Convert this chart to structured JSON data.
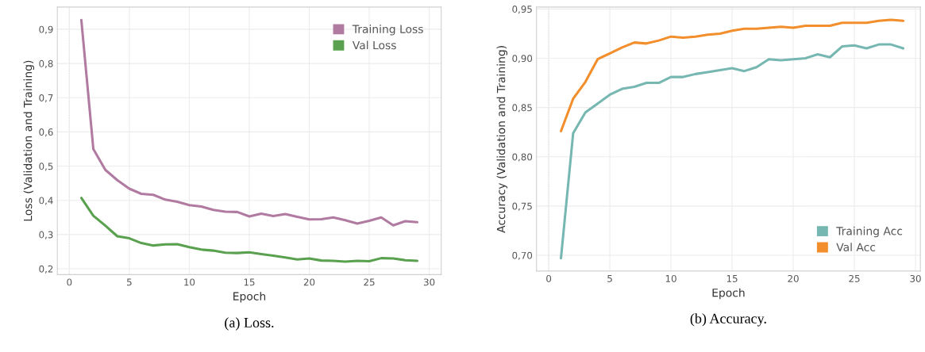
{
  "chart_data": [
    {
      "type": "line",
      "xlabel": "Epoch",
      "ylabel": "Loss (Validation and Training)",
      "annotations": [
        "(a) Loss."
      ],
      "x": [
        1,
        2,
        3,
        4,
        5,
        6,
        7,
        8,
        9,
        10,
        11,
        12,
        13,
        14,
        15,
        16,
        17,
        18,
        19,
        20,
        21,
        22,
        23,
        24,
        25,
        26,
        27,
        28,
        29
      ],
      "series": [
        {
          "name": "Training Loss",
          "color": "#b07aa1",
          "values": [
            0.927,
            0.55,
            0.489,
            0.459,
            0.434,
            0.419,
            0.416,
            0.402,
            0.396,
            0.386,
            0.382,
            0.372,
            0.367,
            0.366,
            0.353,
            0.361,
            0.354,
            0.36,
            0.352,
            0.344,
            0.345,
            0.35,
            0.342,
            0.332,
            0.34,
            0.35,
            0.327,
            0.339,
            0.336
          ]
        },
        {
          "name": "Val Loss",
          "color": "#59a14f",
          "values": [
            0.407,
            0.355,
            0.326,
            0.295,
            0.289,
            0.275,
            0.268,
            0.271,
            0.272,
            0.263,
            0.256,
            0.253,
            0.247,
            0.246,
            0.248,
            0.243,
            0.238,
            0.233,
            0.227,
            0.23,
            0.224,
            0.223,
            0.221,
            0.223,
            0.222,
            0.231,
            0.23,
            0.225,
            0.223
          ]
        }
      ],
      "xlim": [
        -1,
        31
      ],
      "xticks": [
        0,
        5,
        10,
        15,
        20,
        25,
        30
      ],
      "ylim": [
        0.183,
        0.965
      ],
      "yticks": [
        {
          "value": 0.2,
          "label": "0,2"
        },
        {
          "value": 0.3,
          "label": "0,3"
        },
        {
          "value": 0.4,
          "label": "0,4"
        },
        {
          "value": 0.5,
          "label": "0,5"
        },
        {
          "value": 0.6,
          "label": "0,6"
        },
        {
          "value": 0.7,
          "label": "0,7"
        },
        {
          "value": 0.8,
          "label": "0,8"
        },
        {
          "value": 0.9,
          "label": "0,9"
        }
      ],
      "ref_lines": [
        {
          "axis": "x",
          "value": 0,
          "color": "#c8c8c8",
          "line_style": "dotted"
        }
      ],
      "grid": true,
      "legend": "top right",
      "line_style": "solid"
    },
    {
      "type": "line",
      "xlabel": "Epoch",
      "ylabel": "Accuracy (Validation and Training)",
      "annotations": [
        "(b) Accuracy."
      ],
      "x": [
        1,
        2,
        3,
        4,
        5,
        6,
        7,
        8,
        9,
        10,
        11,
        12,
        13,
        14,
        15,
        16,
        17,
        18,
        19,
        20,
        21,
        22,
        23,
        24,
        25,
        26,
        27,
        28,
        29
      ],
      "series": [
        {
          "name": "Training Acc",
          "color": "#76b7b2",
          "values": [
            0.697,
            0.824,
            0.845,
            0.854,
            0.863,
            0.869,
            0.871,
            0.875,
            0.875,
            0.881,
            0.881,
            0.884,
            0.886,
            0.888,
            0.89,
            0.887,
            0.891,
            0.899,
            0.898,
            0.899,
            0.9,
            0.904,
            0.901,
            0.912,
            0.913,
            0.91,
            0.914,
            0.914,
            0.91
          ]
        },
        {
          "name": "Val Acc",
          "color": "#f28e2b",
          "values": [
            0.826,
            0.859,
            0.876,
            0.899,
            0.905,
            0.911,
            0.916,
            0.915,
            0.918,
            0.922,
            0.921,
            0.922,
            0.924,
            0.925,
            0.928,
            0.93,
            0.93,
            0.931,
            0.932,
            0.931,
            0.933,
            0.933,
            0.933,
            0.936,
            0.936,
            0.936,
            0.938,
            0.939,
            0.938
          ]
        }
      ],
      "xlim": [
        -1,
        30.4
      ],
      "xticks": [
        0,
        5,
        10,
        15,
        20,
        25,
        30
      ],
      "ylim": [
        0.684,
        0.952
      ],
      "yticks": [
        {
          "value": 0.7,
          "label": "0,70"
        },
        {
          "value": 0.75,
          "label": "0,75"
        },
        {
          "value": 0.8,
          "label": "0,80"
        },
        {
          "value": 0.85,
          "label": "0,85"
        },
        {
          "value": 0.9,
          "label": "0,90"
        },
        {
          "value": 0.95,
          "label": "0,95"
        }
      ],
      "ref_lines": [
        {
          "axis": "x",
          "value": 0,
          "color": "#c8c8c8",
          "line_style": "dotted"
        }
      ],
      "grid": true,
      "legend": "bottom right",
      "line_style": "solid"
    }
  ]
}
